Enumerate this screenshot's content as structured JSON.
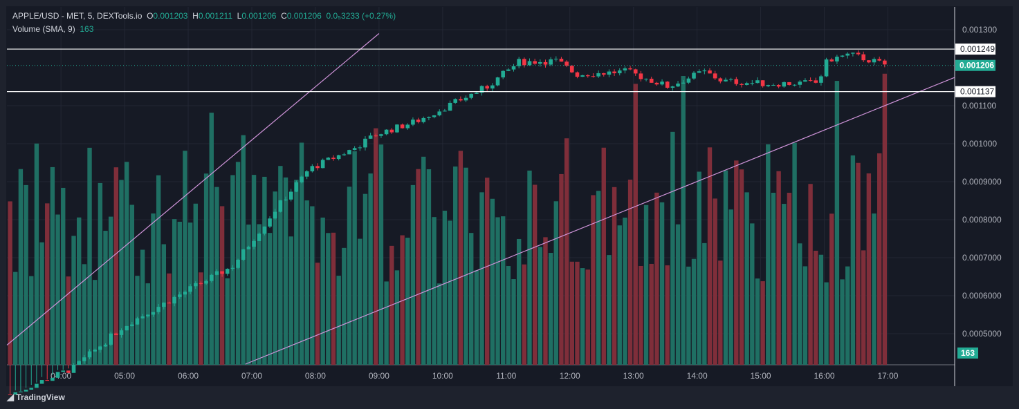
{
  "header": {
    "symbol": "APPLE/USD - MET, 5, DEXTools.io",
    "o_label": "O",
    "o": "0.001203",
    "h_label": "H",
    "h": "0.001211",
    "l_label": "L",
    "l": "0.001206",
    "c_label": "C",
    "c": "0.001206",
    "change": "0.0₅3233 (+0.27%)",
    "volume_label": "Volume (SMA, 9)",
    "volume_value": "163"
  },
  "brand": "TradingView",
  "colors": {
    "up": "#22ab94",
    "down": "#f23645",
    "vol_up": "#1f6f63",
    "vol_down": "#7f2e3a",
    "trend": "#ce93d8",
    "bg": "#161a25"
  },
  "chart_data": {
    "type": "candlestick",
    "title": "APPLE/USD - MET, 5, DEXTools.io",
    "interval_minutes": 5,
    "x_ticks": [
      "04:00",
      "05:00",
      "06:00",
      "07:00",
      "08:00",
      "09:00",
      "10:00",
      "11:00",
      "12:00",
      "13:00",
      "14:00",
      "15:00",
      "16:00",
      "17:00"
    ],
    "y_ticks": [
      "0.001300",
      "0.001100",
      "0.001000",
      "0.0009000",
      "0.0008000",
      "0.0007000",
      "0.0006000",
      "0.0005000"
    ],
    "y_range": [
      0.00042,
      0.00135
    ],
    "x_range_hours": [
      3.15,
      18.05
    ],
    "price_path": [
      [
        3.2,
        0.00034
      ],
      [
        4.2,
        0.00041
      ],
      [
        5.0,
        0.000522
      ],
      [
        6.0,
        0.000615
      ],
      [
        6.7,
        0.000678
      ],
      [
        7.4,
        0.000833
      ],
      [
        7.9,
        0.000933
      ],
      [
        8.6,
        0.000987
      ],
      [
        8.95,
        0.001024
      ],
      [
        9.6,
        0.00106
      ],
      [
        10.15,
        0.001105
      ],
      [
        10.7,
        0.00115
      ],
      [
        11.2,
        0.001215
      ],
      [
        11.8,
        0.001218
      ],
      [
        12.1,
        0.001182
      ],
      [
        12.9,
        0.00119
      ],
      [
        13.55,
        0.00115
      ],
      [
        14.1,
        0.00119
      ],
      [
        14.4,
        0.001165
      ],
      [
        15.05,
        0.001158
      ],
      [
        15.9,
        0.00116
      ],
      [
        16.05,
        0.00122
      ],
      [
        16.4,
        0.001235
      ],
      [
        17.0,
        0.001206
      ]
    ],
    "volume_range": [
      0,
      1100
    ],
    "last_volume": 163,
    "horizontal_lines": [
      {
        "price": 0.001249,
        "label": "0.001249"
      },
      {
        "price": 0.001137,
        "label": "0.001137"
      }
    ],
    "current_price": {
      "price": 0.001206,
      "label": "0.001206"
    },
    "trend_lines": [
      {
        "from": [
          3.15,
          0.00047
        ],
        "to": [
          9.0,
          0.00129
        ]
      },
      {
        "from": [
          6.9,
          0.00042
        ],
        "to": [
          18.05,
          0.0011745
        ]
      }
    ]
  }
}
